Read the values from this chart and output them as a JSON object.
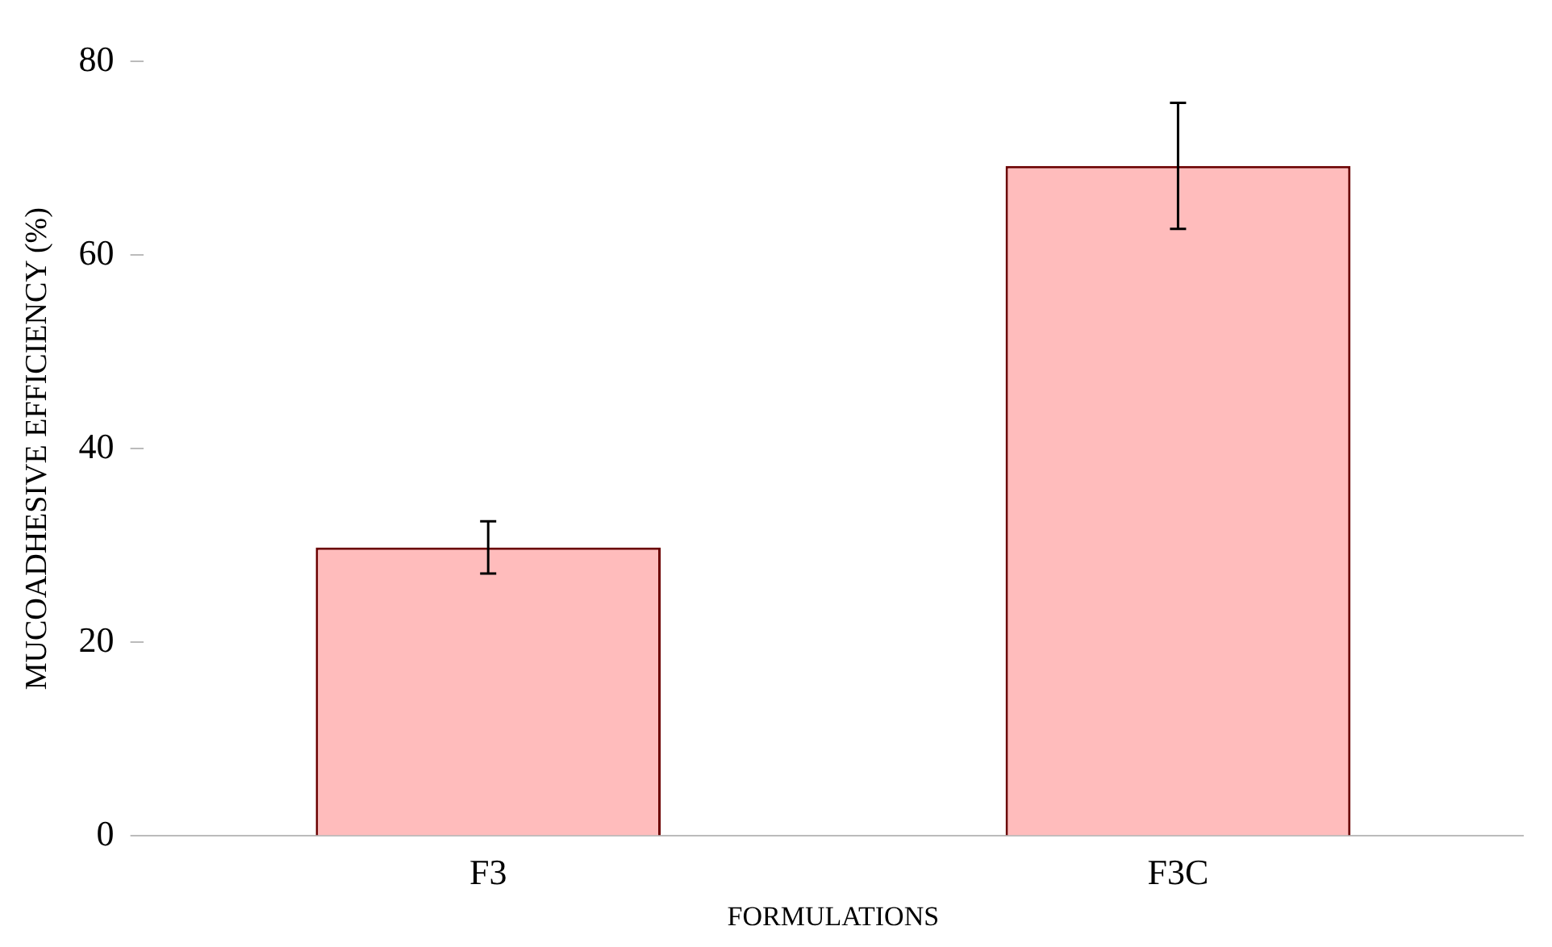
{
  "chart_data": {
    "type": "bar",
    "xlabel": "FORMULATIONS",
    "ylabel": "MUCOADHESIVE EFFICIENCY (%)",
    "categories": [
      "F3",
      "F3C"
    ],
    "values": [
      29.8,
      69.2
    ],
    "errors": [
      2.7,
      6.5
    ],
    "color": "#ffbcbc",
    "ylim": [
      0,
      80
    ],
    "yticks": [
      0,
      20,
      40,
      60,
      80
    ],
    "grid": false,
    "legend": false
  }
}
